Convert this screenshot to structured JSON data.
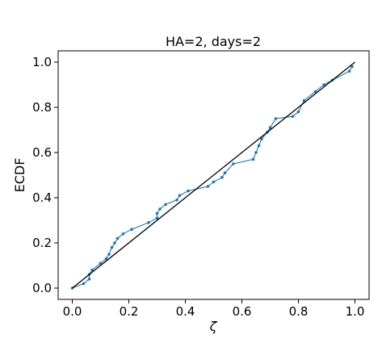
{
  "chart_data": {
    "type": "line",
    "title": "HA=2, days=2",
    "xlabel": "ζ",
    "ylabel": "ECDF",
    "xlim": [
      -0.05,
      1.05
    ],
    "ylim": [
      -0.05,
      1.05
    ],
    "xticks": [
      0.0,
      0.2,
      0.4,
      0.6,
      0.8,
      1.0
    ],
    "yticks": [
      0.0,
      0.2,
      0.4,
      0.6,
      0.8,
      1.0
    ],
    "xtick_labels": [
      "0.0",
      "0.2",
      "0.4",
      "0.6",
      "0.8",
      "1.0"
    ],
    "ytick_labels": [
      "0.0",
      "0.2",
      "0.4",
      "0.6",
      "0.8",
      "1.0"
    ],
    "grid": false,
    "series": [
      {
        "kind": "markers-line",
        "color": "#1f77b4",
        "x": [
          0.0,
          0.04,
          0.06,
          0.06,
          0.07,
          0.1,
          0.12,
          0.13,
          0.14,
          0.15,
          0.16,
          0.18,
          0.21,
          0.27,
          0.3,
          0.3,
          0.31,
          0.33,
          0.37,
          0.38,
          0.41,
          0.48,
          0.5,
          0.53,
          0.54,
          0.57,
          0.64,
          0.65,
          0.66,
          0.67,
          0.69,
          0.7,
          0.72,
          0.78,
          0.8,
          0.82,
          0.86,
          0.89,
          0.92,
          0.98,
          0.99
        ],
        "y": [
          0.0,
          0.02,
          0.04,
          0.06,
          0.08,
          0.11,
          0.13,
          0.15,
          0.18,
          0.2,
          0.22,
          0.24,
          0.26,
          0.29,
          0.31,
          0.33,
          0.35,
          0.37,
          0.39,
          0.41,
          0.43,
          0.45,
          0.47,
          0.49,
          0.51,
          0.55,
          0.57,
          0.6,
          0.63,
          0.66,
          0.69,
          0.71,
          0.75,
          0.76,
          0.78,
          0.83,
          0.87,
          0.9,
          0.92,
          0.96,
          0.98
        ]
      },
      {
        "kind": "reference-line",
        "color": "#000000",
        "x": [
          0.0,
          1.0
        ],
        "y": [
          0.0,
          1.0
        ]
      }
    ]
  }
}
